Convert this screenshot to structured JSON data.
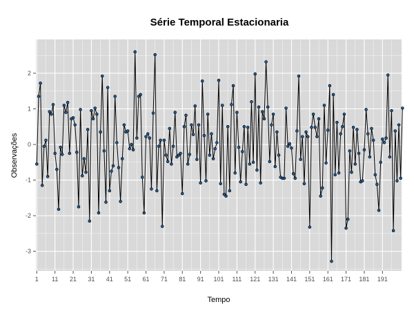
{
  "chart_data": {
    "type": "line",
    "title": "Série Temporal Estacionaria",
    "xlabel": "Tempo",
    "ylabel": "Observações",
    "xlim": [
      0.5,
      201.5
    ],
    "ylim": [
      -3.55,
      2.95
    ],
    "x_ticks": [
      1,
      11,
      21,
      31,
      41,
      51,
      61,
      71,
      81,
      91,
      101,
      111,
      121,
      131,
      141,
      151,
      161,
      171,
      181,
      191
    ],
    "y_ticks": [
      -3,
      -2,
      -1,
      0,
      1,
      2
    ],
    "grid": true,
    "series": [
      {
        "name": "Observações",
        "x_start": 1,
        "values": [
          -0.55,
          1.35,
          1.72,
          -1.15,
          -0.05,
          0.12,
          -0.9,
          0.92,
          0.85,
          1.12,
          -0.25,
          -0.7,
          -1.82,
          -0.08,
          -0.28,
          1.1,
          0.9,
          1.18,
          -0.25,
          0.72,
          0.75,
          0.55,
          -0.22,
          -1.75,
          0.98,
          -0.88,
          -0.4,
          -0.78,
          0.42,
          -2.15,
          0.95,
          0.72,
          1.02,
          0.85,
          -1.92,
          0.35,
          1.92,
          -0.18,
          -1.62,
          1.6,
          -1.3,
          -0.75,
          -0.6,
          1.35,
          0.05,
          -0.65,
          -1.6,
          -0.4,
          0.55,
          0.35,
          0.38,
          -0.12,
          0.0,
          -0.15,
          2.6,
          0.18,
          1.35,
          1.4,
          -0.92,
          -1.92,
          0.22,
          0.3,
          0.18,
          -1.25,
          0.88,
          2.52,
          -1.3,
          -0.05,
          0.12,
          -2.3,
          0.12,
          -0.3,
          -0.48,
          0.45,
          -0.55,
          -0.05,
          0.9,
          -0.35,
          -0.3,
          -0.25,
          -1.38,
          0.5,
          0.82,
          -0.55,
          -0.28,
          0.55,
          0.28,
          1.08,
          -0.42,
          0.55,
          -1.08,
          1.78,
          0.25,
          -1.02,
          0.85,
          -0.3,
          0.3,
          -0.4,
          -0.12,
          0.05,
          1.8,
          -1.1,
          1.1,
          -1.4,
          -1.45,
          0.5,
          -1.3,
          1.12,
          1.65,
          -0.8,
          0.9,
          -0.08,
          -1.05,
          -0.2,
          0.5,
          -1.12,
          0.48,
          -0.55,
          1.2,
          -0.5,
          1.98,
          -0.72,
          1.05,
          -1.08,
          0.92,
          0.72,
          2.32,
          1.05,
          -0.48,
          0.55,
          0.85,
          -0.62,
          0.35,
          -0.3,
          -0.92,
          -0.95,
          -0.95,
          1.02,
          -0.05,
          0.02,
          -0.1,
          -0.82,
          -0.95,
          0.38,
          1.92,
          -0.42,
          0.22,
          -1.1,
          0.35,
          0.22,
          -2.32,
          0.48,
          0.85,
          0.48,
          0.22,
          0.72,
          -1.45,
          -1.22,
          1.1,
          -0.52,
          0.4,
          1.65,
          -3.28,
          1.4,
          -0.85,
          0.62,
          -0.8,
          0.3,
          0.5,
          0.85,
          -2.35,
          -2.1,
          -0.18,
          -0.78,
          0.48,
          -0.55,
          0.42,
          -0.25,
          -1.05,
          -1.02,
          -0.15,
          0.98,
          0.3,
          -0.35,
          0.45,
          0.12,
          -0.85,
          -1.12,
          -1.85,
          -0.5,
          0.15,
          0.05,
          0.18,
          1.95,
          -0.35,
          0.95,
          -2.42,
          0.38,
          -1.02,
          0.55,
          -0.95,
          1.02
        ]
      }
    ],
    "colors": {
      "panel_background": "#d9d9d9",
      "grid_line": "#ffffff",
      "line": "#000000",
      "point_fill": "#1f5fa0",
      "point_stroke": "#000000",
      "tick_text": "#4d4d4d"
    }
  }
}
